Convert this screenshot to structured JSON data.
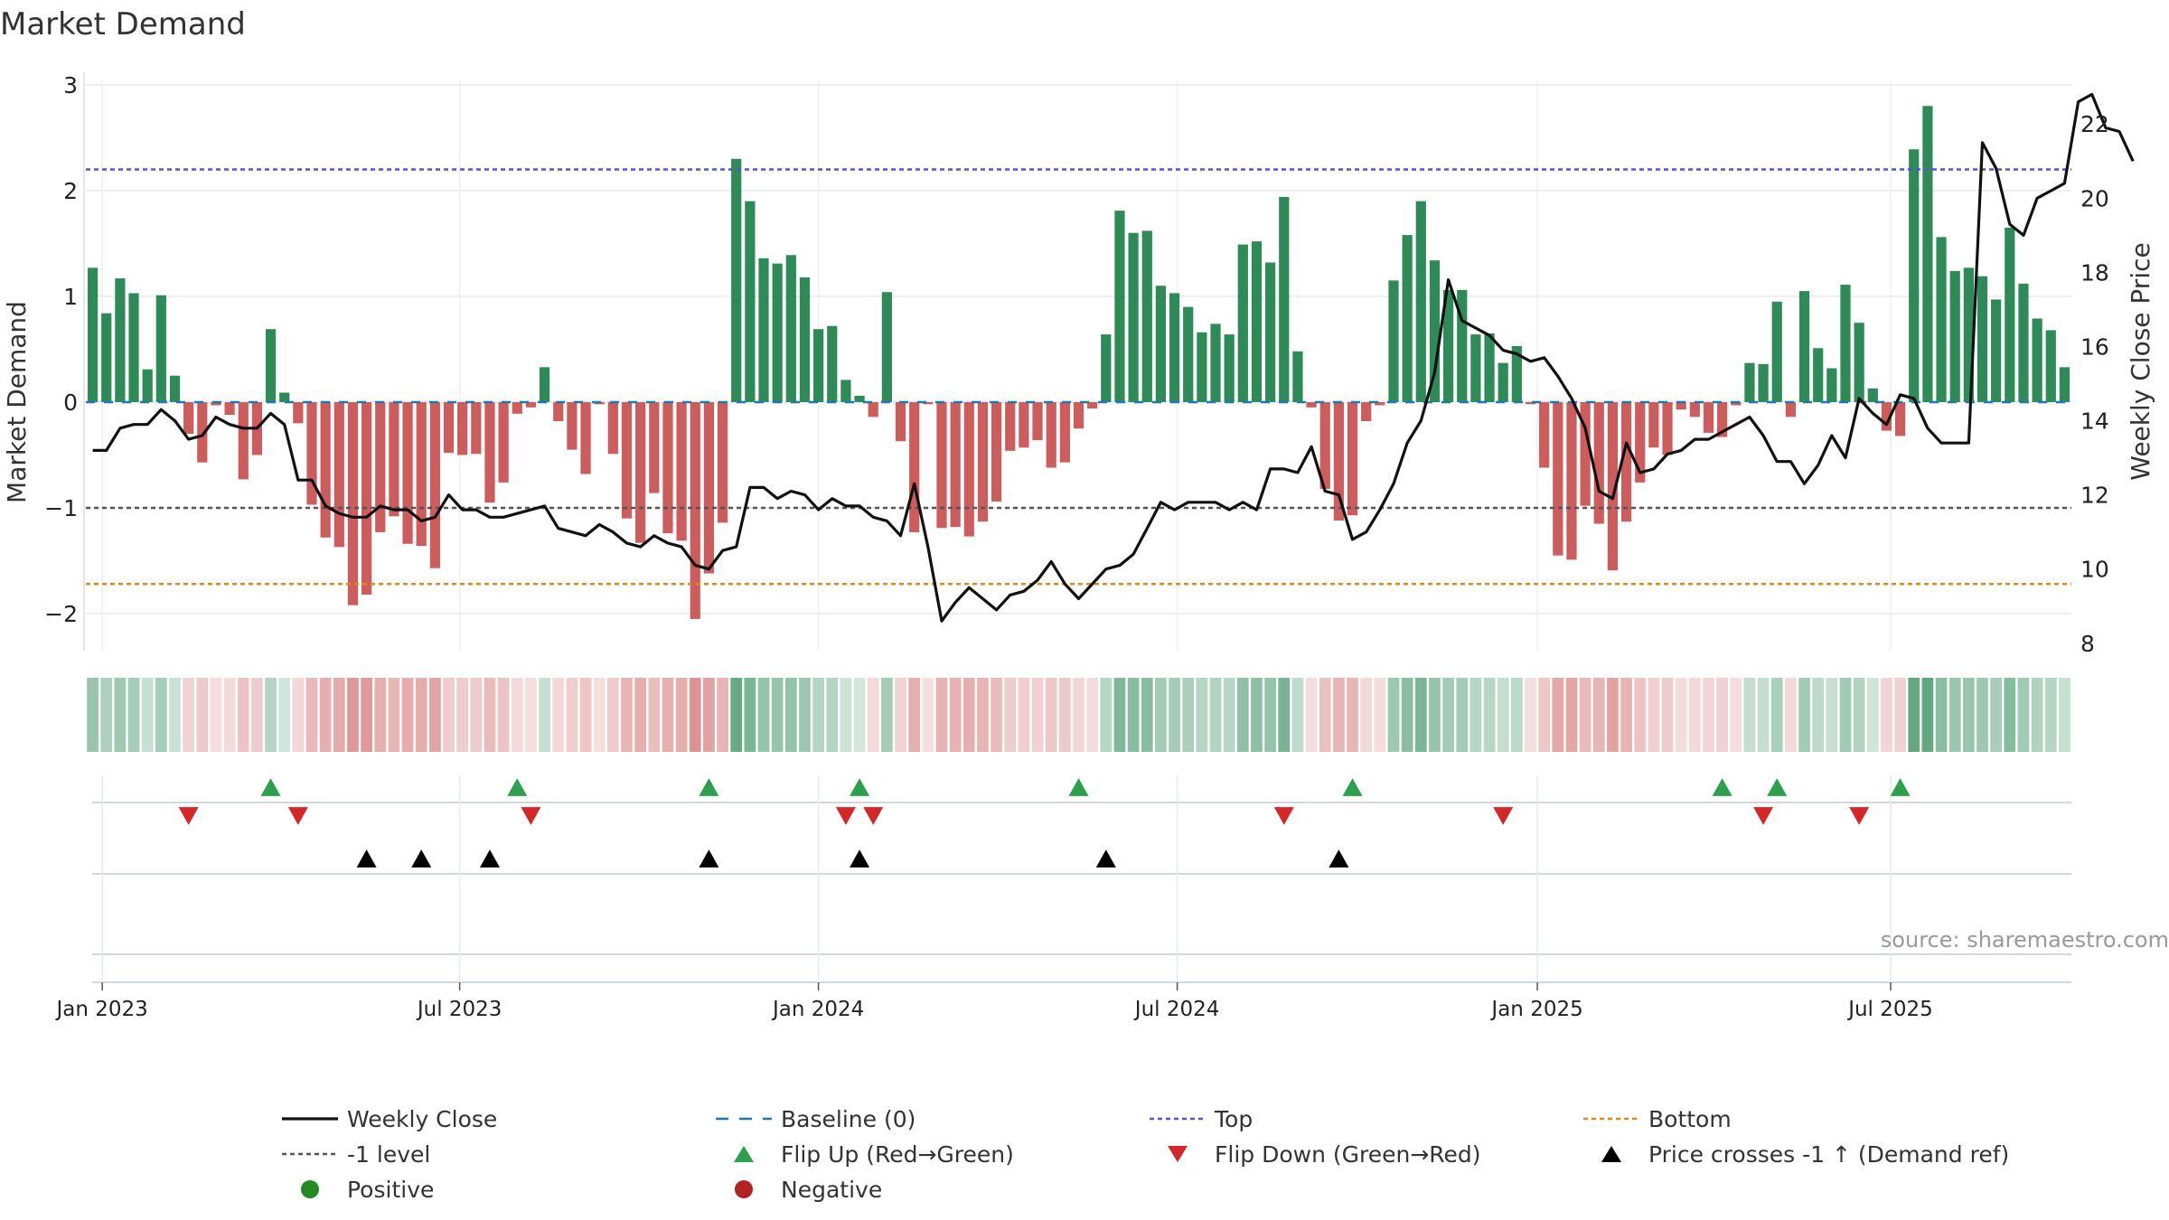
{
  "chart_data": {
    "type": "bar",
    "title": "Market Demand",
    "ylabel": "Market Demand",
    "y2label": "Weekly Close Price",
    "ylim": [
      -2.35,
      3.05
    ],
    "y2lim": [
      7.8,
      23.2
    ],
    "yticks": [
      -2,
      -1,
      0,
      1,
      2,
      3
    ],
    "y2ticks": [
      8,
      10,
      12,
      14,
      16,
      18,
      20,
      22
    ],
    "xtick_labels": [
      "Jan 2023",
      "Jul 2023",
      "Jan 2024",
      "Jul 2024",
      "Jan 2025",
      "Jul 2025"
    ],
    "xtick_index": [
      1.2,
      27.3,
      53.5,
      79.7,
      106,
      131.8
    ],
    "reference_lines": {
      "top": 2.2,
      "minus_one": -1,
      "bottom": -1.72
    },
    "demand": [
      1.27,
      0.84,
      1.17,
      1.03,
      0.31,
      1.01,
      0.25,
      -0.3,
      -0.57,
      -0.03,
      -0.12,
      -0.73,
      -0.5,
      0.69,
      0.09,
      -0.2,
      -0.97,
      -1.28,
      -1.37,
      -1.92,
      -1.82,
      -1.23,
      -1.08,
      -1.34,
      -1.36,
      -1.57,
      -0.48,
      -0.5,
      -0.49,
      -0.95,
      -0.76,
      -0.11,
      -0.05,
      0.33,
      -0.18,
      -0.45,
      -0.68,
      -0.02,
      -0.49,
      -1.1,
      -1.33,
      -0.86,
      -1.24,
      -1.31,
      -2.05,
      -1.62,
      -1.14,
      2.3,
      1.9,
      1.36,
      1.31,
      1.39,
      1.18,
      0.69,
      0.72,
      0.21,
      0.06,
      -0.14,
      1.04,
      -0.37,
      -1.23,
      -0.02,
      -1.19,
      -1.18,
      -1.27,
      -1.13,
      -0.94,
      -0.46,
      -0.43,
      -0.36,
      -0.62,
      -0.57,
      -0.25,
      -0.06,
      0.64,
      1.81,
      1.6,
      1.62,
      1.1,
      1.03,
      0.9,
      0.66,
      0.74,
      0.64,
      1.49,
      1.52,
      1.32,
      1.94,
      0.48,
      -0.05,
      -0.82,
      -1.12,
      -1.07,
      -0.18,
      -0.03,
      1.15,
      1.58,
      1.9,
      1.34,
      1.06,
      1.06,
      0.64,
      0.65,
      0.37,
      0.53,
      -0.02,
      -0.62,
      -1.45,
      -1.49,
      -0.98,
      -1.15,
      -1.59,
      -1.13,
      -0.76,
      -0.43,
      -0.5,
      -0.07,
      -0.14,
      -0.29,
      -0.33,
      -0.03,
      0.37,
      0.36,
      0.95,
      -0.14,
      1.05,
      0.51,
      0.32,
      1.11,
      0.75,
      0.13,
      -0.27,
      -0.32,
      2.39,
      2.8,
      1.56,
      1.24,
      1.27,
      1.19,
      0.97,
      1.65,
      1.12,
      0.79,
      0.68,
      0.33
    ],
    "series": [
      {
        "name": "Weekly Close",
        "values": [
          13.2,
          13.2,
          13.8,
          13.9,
          13.9,
          14.3,
          14.0,
          13.5,
          13.6,
          14.1,
          13.9,
          13.8,
          13.8,
          14.2,
          13.9,
          12.4,
          12.4,
          11.7,
          11.5,
          11.4,
          11.4,
          11.7,
          11.6,
          11.6,
          11.3,
          11.4,
          12.0,
          11.6,
          11.6,
          11.4,
          11.4,
          11.5,
          11.6,
          11.7,
          11.1,
          11.0,
          10.9,
          11.2,
          11.0,
          10.7,
          10.6,
          10.9,
          10.7,
          10.6,
          10.1,
          10.0,
          10.5,
          10.6,
          12.2,
          12.2,
          11.9,
          12.1,
          12.0,
          11.6,
          11.9,
          11.7,
          11.7,
          11.4,
          11.3,
          10.9,
          12.3,
          10.6,
          8.6,
          9.1,
          9.5,
          9.2,
          8.9,
          9.3,
          9.4,
          9.7,
          10.2,
          9.6,
          9.2,
          9.6,
          10.0,
          10.1,
          10.4,
          11.1,
          11.8,
          11.6,
          11.8,
          11.8,
          11.8,
          11.6,
          11.8,
          11.6,
          12.7,
          12.7,
          12.6,
          13.3,
          12.1,
          12.0,
          10.8,
          11.0,
          11.6,
          12.3,
          13.4,
          14.0,
          15.3,
          17.8,
          16.7,
          16.5,
          16.3,
          15.9,
          15.8,
          15.6,
          15.7,
          15.2,
          14.6,
          13.8,
          12.1,
          11.9,
          13.4,
          12.6,
          12.7,
          13.1,
          13.2,
          13.5,
          13.5,
          13.7,
          13.9,
          14.1,
          13.6,
          12.9,
          12.9,
          12.3,
          12.8,
          13.6,
          13.0,
          14.6,
          14.2,
          13.9,
          14.7,
          14.6,
          13.8,
          13.4,
          13.4,
          13.4,
          21.5,
          20.8,
          19.3,
          19.0,
          20.0,
          20.2,
          20.4,
          22.6,
          22.8,
          21.9,
          21.8,
          21.0
        ]
      }
    ],
    "markers": {
      "flip_up": [
        13,
        31,
        45,
        56,
        72,
        92,
        119,
        123,
        132
      ],
      "flip_down": [
        7,
        15,
        32,
        55,
        57,
        87,
        103,
        122,
        129
      ],
      "price_cross": [
        20,
        24,
        29,
        45,
        56,
        74,
        91
      ]
    },
    "legend": {
      "placement": "bottom-center",
      "items": [
        {
          "label": "Weekly Close"
        },
        {
          "label": "Baseline (0)"
        },
        {
          "label": "Top"
        },
        {
          "label": "Bottom"
        },
        {
          "label": "-1 level"
        },
        {
          "label": "Flip Up (Red→Green)"
        },
        {
          "label": "Flip Down (Green→Red)"
        },
        {
          "label": "Price crosses -1 ↑ (Demand ref)"
        },
        {
          "label": "Positive"
        },
        {
          "label": "Negative"
        }
      ]
    },
    "source_note": "source: sharemaestro.com",
    "colors": {
      "positive": "#2e8b57",
      "negative": "#cd5c5c",
      "price": "#111111",
      "baseline": "#1f77b4",
      "top": "#5555cc",
      "minus_one": "#555555",
      "bottom": "#e08a1e",
      "flip_up": "#2ca04c",
      "flip_down": "#d62728",
      "cross": "#000000",
      "positive_dot": "#228b22",
      "negative_dot": "#b22222"
    }
  }
}
